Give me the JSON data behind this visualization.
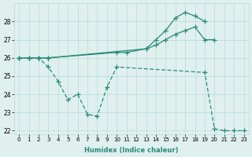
{
  "xlabel": "Humidex (Indice chaleur)",
  "line1_x": [
    0,
    1,
    2,
    3,
    13,
    14,
    15,
    16,
    17,
    18,
    19
  ],
  "line1_y": [
    26.0,
    26.0,
    26.0,
    26.0,
    26.5,
    27.0,
    27.5,
    28.2,
    28.5,
    28.3,
    28.0
  ],
  "line2_x": [
    0,
    1,
    2,
    3,
    10,
    11,
    13,
    14,
    15,
    16,
    17,
    18,
    19,
    20
  ],
  "line2_y": [
    26.0,
    26.0,
    26.0,
    26.0,
    26.3,
    26.3,
    26.5,
    26.7,
    27.0,
    27.3,
    27.5,
    27.7,
    27.0,
    27.0
  ],
  "line3_x": [
    0,
    1,
    2,
    3,
    4,
    5,
    6,
    7,
    8,
    9,
    10,
    19,
    20,
    21,
    22,
    23
  ],
  "line3_y": [
    26.0,
    26.0,
    26.0,
    25.5,
    24.7,
    23.7,
    24.0,
    22.9,
    22.8,
    24.4,
    25.5,
    25.2,
    22.1,
    22.0,
    22.0,
    22.0
  ],
  "line_color": "#2a8a7a",
  "bg_color": "#dff0ee",
  "grid_color": "#b8dcd8",
  "ylim": [
    21.8,
    29.0
  ],
  "xlim": [
    -0.5,
    23.5
  ],
  "yticks": [
    22,
    23,
    24,
    25,
    26,
    27,
    28
  ],
  "xticks": [
    0,
    1,
    2,
    3,
    4,
    5,
    6,
    7,
    8,
    9,
    10,
    11,
    12,
    13,
    14,
    15,
    16,
    17,
    18,
    19,
    20,
    21,
    22,
    23
  ],
  "markersize": 4,
  "linewidth": 0.9
}
